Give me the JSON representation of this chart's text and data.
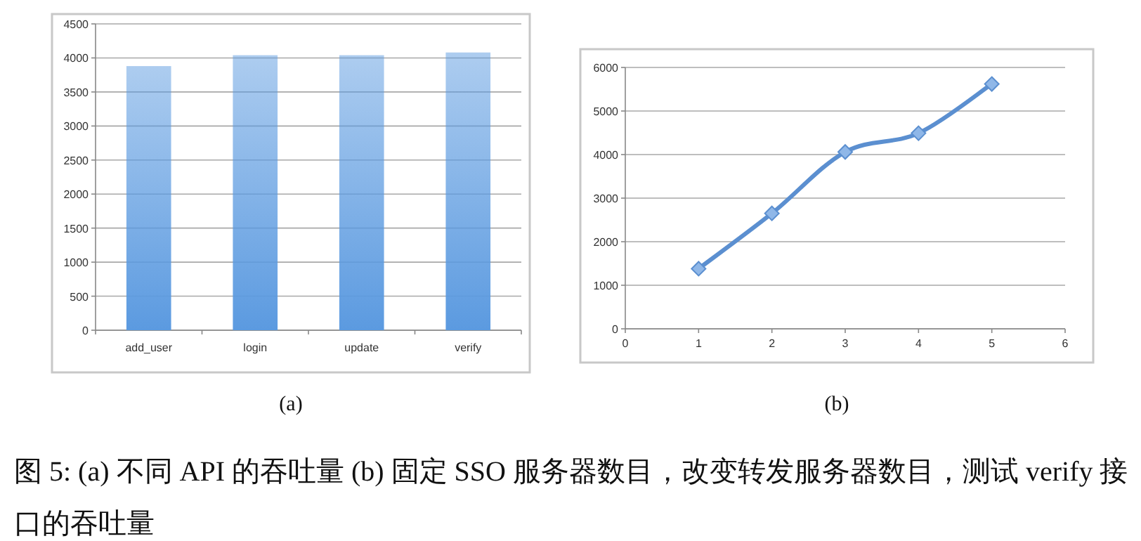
{
  "chart_data": [
    {
      "type": "bar",
      "categories": [
        "add_user",
        "login",
        "update",
        "verify"
      ],
      "values": [
        3880,
        4040,
        4040,
        4080
      ],
      "color": "#5b9ae0",
      "ylim": [
        0,
        4500
      ],
      "yticks": [
        0,
        500,
        1000,
        1500,
        2000,
        2500,
        3000,
        3500,
        4000,
        4500
      ],
      "grid": "y",
      "annotations": [
        "(a)",
        "图 5: (a) 不同 API 的吞吐量 (b) 固定 SSO 服务器数目，改变转发服务器数目，测试 verify 接口的吞吐量"
      ]
    },
    {
      "type": "line",
      "x": [
        1,
        2,
        3,
        4,
        5
      ],
      "values": [
        1380,
        2650,
        4060,
        4490,
        5620
      ],
      "color": "#5b8fd0",
      "marker": "diamond",
      "xlim": [
        0,
        6
      ],
      "xticks": [
        0,
        1,
        2,
        3,
        4,
        5,
        6
      ],
      "ylim": [
        0,
        6000
      ],
      "yticks": [
        0,
        1000,
        2000,
        3000,
        4000,
        5000,
        6000
      ],
      "grid": "y",
      "annotations": [
        "(b)"
      ]
    }
  ]
}
